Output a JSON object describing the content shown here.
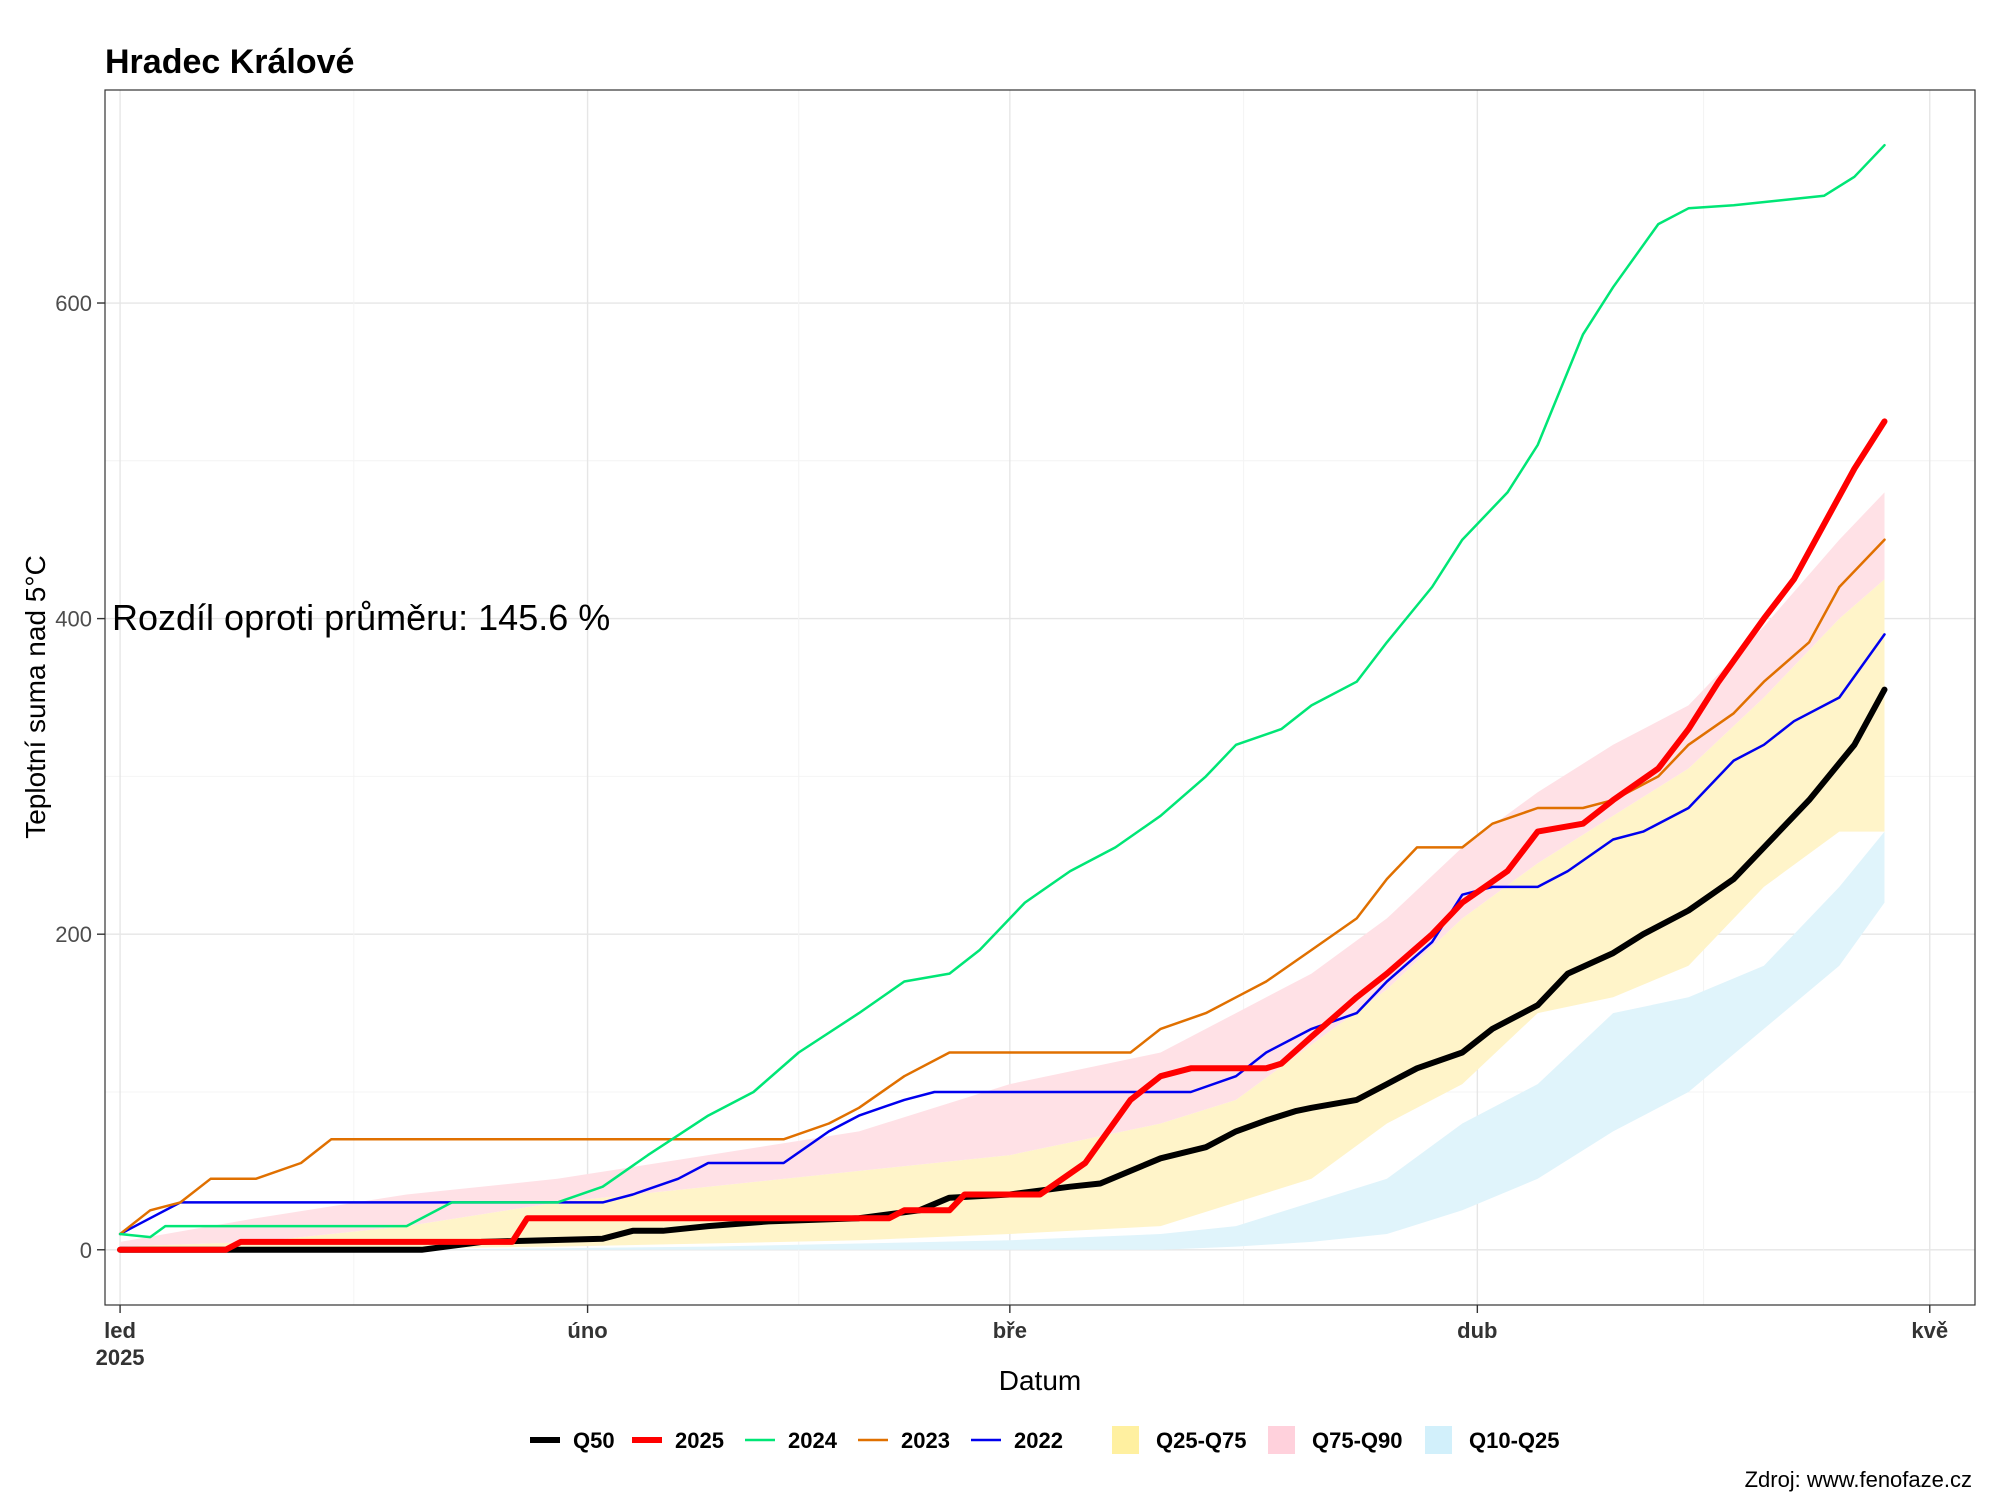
{
  "chart_data": {
    "type": "line",
    "title": "Hradec Králové",
    "xlabel": "Datum",
    "ylabel": "Teplotní suma nad 5°C",
    "annotation": "Rozdíl oproti průměru: 145.6 %",
    "source": "Zdroj: www.fenofaze.cz",
    "xlim": [
      0,
      124
    ],
    "ylim": [
      -35,
      735
    ],
    "yticks": [
      0,
      200,
      400,
      600
    ],
    "xticks": [
      {
        "day": 1,
        "label": "led",
        "sublabel": "2025"
      },
      {
        "day": 32,
        "label": "úno"
      },
      {
        "day": 60,
        "label": "bře"
      },
      {
        "day": 91,
        "label": "dub"
      },
      {
        "day": 121,
        "label": "kvě"
      }
    ],
    "bands": [
      {
        "name": "Q10-Q25",
        "color": "#e0f4fb",
        "x": [
          1,
          10,
          20,
          30,
          40,
          50,
          60,
          70,
          75,
          80,
          85,
          90,
          95,
          100,
          105,
          110,
          115,
          118
        ],
        "lower": [
          0,
          0,
          0,
          0,
          0,
          0,
          0,
          0,
          2,
          5,
          10,
          25,
          45,
          75,
          100,
          140,
          180,
          220
        ],
        "upper": [
          0,
          0,
          0,
          1,
          2,
          4,
          6,
          10,
          15,
          30,
          45,
          80,
          105,
          150,
          160,
          180,
          230,
          265
        ]
      },
      {
        "name": "Q25-Q75",
        "color": "#fff4c9",
        "x": [
          1,
          10,
          20,
          30,
          40,
          50,
          60,
          70,
          75,
          80,
          85,
          90,
          95,
          100,
          105,
          110,
          115,
          118
        ],
        "lower": [
          0,
          0,
          1,
          2,
          4,
          6,
          10,
          15,
          30,
          45,
          80,
          105,
          150,
          160,
          180,
          230,
          265,
          265
        ],
        "upper": [
          2,
          5,
          15,
          30,
          40,
          50,
          60,
          80,
          95,
          130,
          165,
          210,
          245,
          275,
          305,
          350,
          400,
          425
        ]
      },
      {
        "name": "Q75-Q90",
        "color": "#ffe1e6",
        "x": [
          1,
          10,
          20,
          30,
          40,
          50,
          60,
          70,
          75,
          80,
          85,
          90,
          95,
          100,
          105,
          110,
          115,
          118
        ],
        "lower": [
          2,
          5,
          15,
          30,
          40,
          50,
          60,
          80,
          95,
          130,
          165,
          210,
          245,
          275,
          305,
          350,
          400,
          425
        ],
        "upper": [
          5,
          20,
          35,
          45,
          60,
          75,
          105,
          125,
          150,
          175,
          210,
          255,
          290,
          320,
          345,
          395,
          450,
          480
        ]
      }
    ],
    "series": [
      {
        "name": "Q50",
        "color": "#000000",
        "width": 6,
        "x": [
          1,
          8,
          21,
          25,
          33,
          35,
          37,
          40,
          44,
          50,
          54,
          56,
          60,
          64,
          66,
          68,
          70,
          73,
          75,
          77,
          79,
          80,
          83,
          85,
          87,
          90,
          92,
          95,
          97,
          100,
          102,
          105,
          108,
          110,
          113,
          116,
          118
        ],
        "y": [
          0,
          0,
          0,
          5,
          7,
          12,
          12,
          15,
          18,
          20,
          25,
          33,
          35,
          40,
          42,
          50,
          58,
          65,
          75,
          82,
          88,
          90,
          95,
          105,
          115,
          125,
          140,
          155,
          175,
          188,
          200,
          215,
          235,
          255,
          285,
          320,
          355
        ]
      },
      {
        "name": "2025",
        "color": "#ff0000",
        "width": 6,
        "x": [
          1,
          8,
          9,
          27,
          28,
          52,
          53,
          56,
          57,
          62,
          65,
          68,
          70,
          72,
          77,
          78,
          80,
          83,
          85,
          88,
          90,
          93,
          95,
          98,
          100,
          103,
          105,
          107,
          110,
          112,
          114,
          116,
          118
        ],
        "y": [
          0,
          0,
          5,
          5,
          20,
          20,
          25,
          25,
          35,
          35,
          55,
          95,
          110,
          115,
          115,
          118,
          135,
          160,
          175,
          200,
          220,
          240,
          265,
          270,
          285,
          305,
          330,
          360,
          400,
          425,
          460,
          495,
          525
        ]
      },
      {
        "name": "2024",
        "color": "#00e676",
        "width": 2.5,
        "x": [
          1,
          3,
          4,
          10,
          20,
          23,
          30,
          33,
          36,
          40,
          43,
          46,
          50,
          53,
          56,
          58,
          61,
          64,
          67,
          70,
          73,
          75,
          78,
          80,
          83,
          85,
          88,
          90,
          93,
          95,
          98,
          100,
          103,
          105,
          108,
          111,
          114,
          116,
          118
        ],
        "y": [
          10,
          8,
          15,
          15,
          15,
          30,
          30,
          40,
          60,
          85,
          100,
          125,
          150,
          170,
          175,
          190,
          220,
          240,
          255,
          275,
          300,
          320,
          330,
          345,
          360,
          385,
          420,
          450,
          480,
          510,
          580,
          610,
          650,
          660,
          662,
          665,
          668,
          680,
          700
        ]
      },
      {
        "name": "2023",
        "color": "#e07000",
        "width": 2.5,
        "x": [
          1,
          3,
          5,
          7,
          10,
          13,
          15,
          20,
          30,
          40,
          45,
          48,
          50,
          53,
          56,
          60,
          64,
          68,
          70,
          73,
          75,
          77,
          80,
          83,
          85,
          87,
          90,
          92,
          95,
          98,
          100,
          103,
          105,
          108,
          110,
          113,
          115,
          118
        ],
        "y": [
          10,
          25,
          30,
          45,
          45,
          55,
          70,
          70,
          70,
          70,
          70,
          80,
          90,
          110,
          125,
          125,
          125,
          125,
          140,
          150,
          160,
          170,
          190,
          210,
          235,
          255,
          255,
          270,
          280,
          280,
          285,
          300,
          320,
          340,
          360,
          385,
          420,
          450
        ]
      },
      {
        "name": "2022",
        "color": "#0000ee",
        "width": 2.5,
        "x": [
          1,
          3,
          5,
          15,
          25,
          30,
          33,
          35,
          38,
          40,
          45,
          48,
          50,
          53,
          55,
          60,
          65,
          70,
          72,
          75,
          77,
          80,
          83,
          85,
          88,
          90,
          92,
          95,
          97,
          100,
          102,
          105,
          108,
          110,
          112,
          115,
          118
        ],
        "y": [
          10,
          20,
          30,
          30,
          30,
          30,
          30,
          35,
          45,
          55,
          55,
          75,
          85,
          95,
          100,
          100,
          100,
          100,
          100,
          110,
          125,
          140,
          150,
          170,
          195,
          225,
          230,
          230,
          240,
          260,
          265,
          280,
          310,
          320,
          335,
          350,
          390
        ]
      }
    ],
    "legend": {
      "placement": "bottom",
      "lines": [
        {
          "label": "Q50",
          "color": "#000000"
        },
        {
          "label": "2025",
          "color": "#ff0000"
        },
        {
          "label": "2024",
          "color": "#00e676"
        },
        {
          "label": "2023",
          "color": "#e07000"
        },
        {
          "label": "2022",
          "color": "#0000ee"
        }
      ],
      "fills": [
        {
          "label": "Q25-Q75",
          "color": "#fff0a0"
        },
        {
          "label": "Q75-Q90",
          "color": "#ffd1dc"
        },
        {
          "label": "Q10-Q25",
          "color": "#d2f0fb"
        }
      ]
    },
    "grid": true
  }
}
